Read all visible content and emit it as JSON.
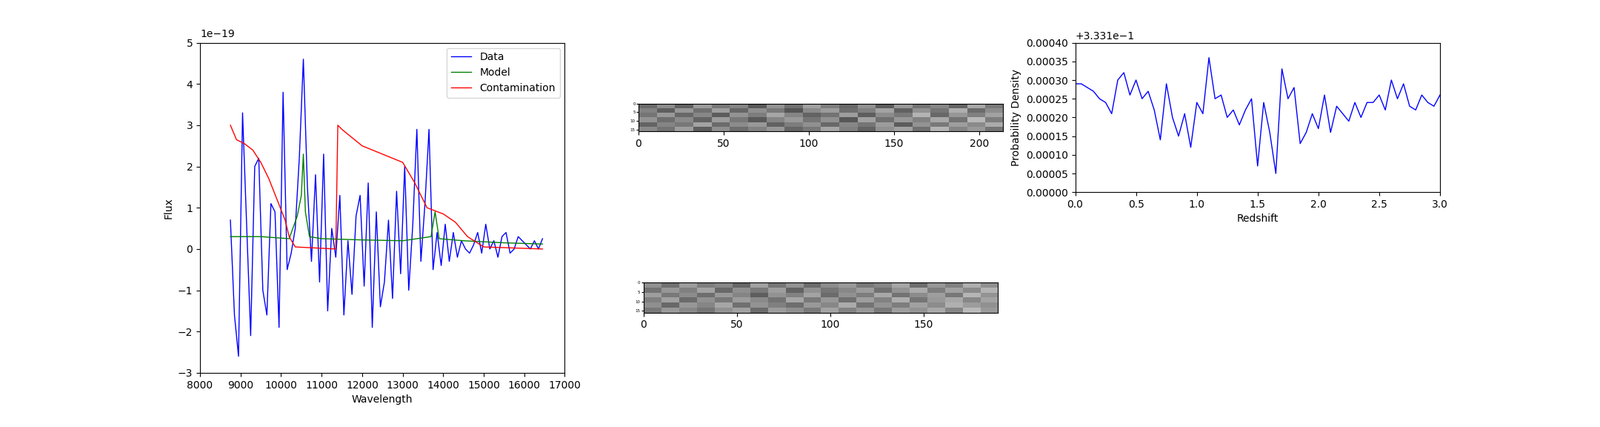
{
  "chart_data": [
    {
      "type": "line",
      "x_label": "Wavelength",
      "y_label": "Flux",
      "annotations": [
        {
          "text": "1e−19"
        }
      ],
      "xlim": [
        8000,
        17000
      ],
      "xticks": [
        8000,
        9000,
        10000,
        11000,
        12000,
        13000,
        14000,
        15000,
        16000,
        17000
      ],
      "ylim": [
        -3,
        5
      ],
      "yticks": [
        {
          "value": -3,
          "label": "−3"
        },
        {
          "value": -2,
          "label": "−2"
        },
        {
          "value": -1,
          "label": "−1"
        },
        0,
        1,
        2,
        3,
        4,
        5
      ],
      "legend": "upper right",
      "series": [
        {
          "name": "Data",
          "color": "#0000ff",
          "x": [
            8750,
            8850,
            8950,
            9050,
            9150,
            9250,
            9350,
            9450,
            9550,
            9650,
            9750,
            9850,
            9950,
            10050,
            10150,
            10250,
            10350,
            10450,
            10550,
            10650,
            10750,
            10850,
            10950,
            11050,
            11150,
            11250,
            11350,
            11450,
            11550,
            11650,
            11750,
            11850,
            11950,
            12050,
            12150,
            12250,
            12350,
            12450,
            12550,
            12650,
            12750,
            12850,
            12950,
            13050,
            13150,
            13250,
            13350,
            13450,
            13550,
            13650,
            13750,
            13850,
            13950,
            14050,
            14150,
            14250,
            14350,
            14450,
            14550,
            14650,
            14750,
            14850,
            14950,
            15050,
            15150,
            15250,
            15350,
            15450,
            15550,
            15650,
            15750,
            15850,
            15950,
            16050,
            16150,
            16250,
            16350,
            16450
          ],
          "values": [
            0.7,
            -1.6,
            -2.6,
            3.3,
            0.6,
            -2.1,
            2.0,
            2.2,
            -1.0,
            -1.6,
            1.1,
            0.9,
            -1.9,
            3.8,
            -0.5,
            -0.1,
            0.5,
            2.2,
            4.6,
            1.5,
            -0.3,
            1.8,
            -0.8,
            2.3,
            -1.5,
            0.5,
            -0.2,
            1.3,
            -1.6,
            0.2,
            -1.1,
            0.8,
            1.3,
            -0.9,
            1.6,
            -1.9,
            0.9,
            -1.4,
            -0.8,
            0.7,
            -1.2,
            1.4,
            -0.6,
            2.0,
            -1.0,
            0.6,
            2.9,
            -0.3,
            1.1,
            2.9,
            -0.5,
            0.4,
            -0.4,
            0.6,
            -0.3,
            0.4,
            -0.2,
            0.2,
            0.0,
            -0.1,
            0.1,
            0.4,
            -0.1,
            0.6,
            0.0,
            0.2,
            -0.2,
            0.3,
            0.4,
            -0.1,
            0.0,
            0.3,
            0.2,
            0.1,
            0.0,
            0.2,
            0.0,
            0.25
          ]
        },
        {
          "name": "Model",
          "color": "#008000",
          "x": [
            8750,
            9500,
            10200,
            10400,
            10500,
            10550,
            10600,
            10700,
            11000,
            12000,
            13000,
            13700,
            13800,
            13900,
            14500,
            15500,
            16450
          ],
          "values": [
            0.3,
            0.3,
            0.25,
            0.8,
            1.3,
            2.3,
            0.9,
            0.3,
            0.25,
            0.22,
            0.2,
            0.3,
            0.9,
            0.25,
            0.2,
            0.15,
            0.12
          ]
        },
        {
          "name": "Contamination",
          "color": "#ff0000",
          "x": [
            8750,
            8900,
            9100,
            9300,
            9500,
            9700,
            9900,
            10100,
            10200,
            10350,
            11350,
            11400,
            11500,
            12000,
            12500,
            13000,
            13300,
            13600,
            14000,
            14300,
            14600,
            15000,
            16450
          ],
          "values": [
            3.0,
            2.65,
            2.55,
            2.4,
            2.1,
            1.7,
            1.2,
            0.7,
            0.3,
            0.05,
            0.0,
            3.0,
            2.9,
            2.5,
            2.3,
            2.1,
            1.6,
            1.0,
            0.85,
            0.65,
            0.3,
            0.05,
            0.0
          ]
        }
      ]
    },
    {
      "type": "heatmap",
      "xlim": [
        0,
        214
      ],
      "xticks": [
        0,
        50,
        100,
        150,
        200
      ],
      "ylim": [
        16,
        0
      ],
      "yticks": [
        0,
        5,
        10,
        15
      ],
      "zlim": [
        0,
        1
      ],
      "cells": [
        [
          0.42,
          0.55,
          0.38,
          0.61,
          0.47,
          0.52,
          0.35,
          0.58,
          0.44,
          0.63,
          0.49,
          0.41,
          0.57,
          0.36,
          0.6,
          0.45,
          0.53,
          0.39,
          0.66,
          0.48
        ],
        [
          0.51,
          0.37,
          0.59,
          0.44,
          0.62,
          0.4,
          0.56,
          0.47,
          0.33,
          0.54,
          0.61,
          0.43,
          0.5,
          0.64,
          0.38,
          0.57,
          0.46,
          0.68,
          0.42,
          0.55
        ],
        [
          0.46,
          0.6,
          0.41,
          0.53,
          0.36,
          0.58,
          0.49,
          0.65,
          0.52,
          0.39,
          0.45,
          0.62,
          0.37,
          0.55,
          0.48,
          0.7,
          0.41,
          0.59,
          0.5,
          0.63
        ],
        [
          0.58,
          0.43,
          0.54,
          0.39,
          0.61,
          0.47,
          0.35,
          0.52,
          0.6,
          0.46,
          0.57,
          0.34,
          0.63,
          0.44,
          0.59,
          0.51,
          0.66,
          0.45,
          0.72,
          0.49
        ],
        [
          0.39,
          0.52,
          0.47,
          0.64,
          0.42,
          0.55,
          0.6,
          0.38,
          0.49,
          0.57,
          0.41,
          0.53,
          0.46,
          0.61,
          0.36,
          0.58,
          0.48,
          0.62,
          0.54,
          0.67
        ],
        [
          0.54,
          0.45,
          0.62,
          0.37,
          0.56,
          0.43,
          0.51,
          0.59,
          0.4,
          0.48,
          0.65,
          0.5,
          0.39,
          0.57,
          0.63,
          0.44,
          0.71,
          0.52,
          0.6,
          0.46
        ]
      ]
    },
    {
      "type": "heatmap",
      "xlim": [
        0,
        190
      ],
      "xticks": [
        0,
        50,
        100,
        150
      ],
      "ylim": [
        16,
        0
      ],
      "yticks": [
        0,
        5,
        10,
        15
      ],
      "zlim": [
        0,
        1
      ],
      "cells": [
        [
          0.57,
          0.44,
          0.61,
          0.49,
          0.53,
          0.4,
          0.63,
          0.46,
          0.58,
          0.42,
          0.55,
          0.6,
          0.47,
          0.52,
          0.65,
          0.43,
          0.59,
          0.5,
          0.68,
          0.56
        ],
        [
          0.45,
          0.59,
          0.5,
          0.64,
          0.41,
          0.56,
          0.48,
          0.62,
          0.39,
          0.57,
          0.46,
          0.53,
          0.61,
          0.44,
          0.58,
          0.67,
          0.49,
          0.63,
          0.54,
          0.7
        ],
        [
          0.62,
          0.48,
          0.55,
          0.43,
          0.6,
          0.52,
          0.37,
          0.58,
          0.51,
          0.64,
          0.42,
          0.57,
          0.49,
          0.66,
          0.45,
          0.55,
          0.62,
          0.47,
          0.71,
          0.58
        ],
        [
          0.5,
          0.63,
          0.42,
          0.57,
          0.47,
          0.61,
          0.54,
          0.45,
          0.65,
          0.48,
          0.59,
          0.44,
          0.62,
          0.51,
          0.68,
          0.46,
          0.6,
          0.66,
          0.53,
          0.64
        ],
        [
          0.56,
          0.41,
          0.59,
          0.52,
          0.65,
          0.44,
          0.58,
          0.5,
          0.43,
          0.6,
          0.53,
          0.67,
          0.45,
          0.58,
          0.49,
          0.63,
          0.55,
          0.69,
          0.61,
          0.57
        ],
        [
          0.47,
          0.6,
          0.53,
          0.46,
          0.57,
          0.63,
          0.42,
          0.61,
          0.56,
          0.48,
          0.64,
          0.51,
          0.59,
          0.47,
          0.62,
          0.58,
          0.66,
          0.52,
          0.73,
          0.6
        ]
      ]
    },
    {
      "type": "line",
      "x_label": "Redshift",
      "y_label": "Probability Density",
      "annotations": [
        {
          "text": "+3.331e−1"
        }
      ],
      "xlim": [
        0.0,
        3.0
      ],
      "xticks": [
        {
          "value": 0.0,
          "label": "0.0"
        },
        {
          "value": 0.5,
          "label": "0.5"
        },
        {
          "value": 1.0,
          "label": "1.0"
        },
        {
          "value": 1.5,
          "label": "1.5"
        },
        {
          "value": 2.0,
          "label": "2.0"
        },
        {
          "value": 2.5,
          "label": "2.5"
        },
        {
          "value": 3.0,
          "label": "3.0"
        }
      ],
      "ylim": [
        0.0,
        0.0004
      ],
      "yticks": [
        {
          "value": 0.0,
          "label": "0.00000"
        },
        {
          "value": 5e-05,
          "label": "0.00005"
        },
        {
          "value": 0.0001,
          "label": "0.00010"
        },
        {
          "value": 0.00015,
          "label": "0.00015"
        },
        {
          "value": 0.0002,
          "label": "0.00020"
        },
        {
          "value": 0.00025,
          "label": "0.00025"
        },
        {
          "value": 0.0003,
          "label": "0.00030"
        },
        {
          "value": 0.00035,
          "label": "0.00035"
        },
        {
          "value": 0.0004,
          "label": "0.00040"
        }
      ],
      "series": [
        {
          "color": "#0000ff",
          "x": [
            0.0,
            0.05,
            0.1,
            0.15,
            0.2,
            0.25,
            0.3,
            0.35,
            0.4,
            0.45,
            0.5,
            0.55,
            0.6,
            0.65,
            0.7,
            0.75,
            0.8,
            0.85,
            0.9,
            0.95,
            1.0,
            1.05,
            1.1,
            1.15,
            1.2,
            1.25,
            1.3,
            1.35,
            1.4,
            1.45,
            1.5,
            1.55,
            1.6,
            1.65,
            1.7,
            1.75,
            1.8,
            1.85,
            1.9,
            1.95,
            2.0,
            2.05,
            2.1,
            2.15,
            2.2,
            2.25,
            2.3,
            2.35,
            2.4,
            2.45,
            2.5,
            2.55,
            2.6,
            2.65,
            2.7,
            2.75,
            2.8,
            2.85,
            2.9,
            2.95,
            3.0
          ],
          "values": [
            0.00029,
            0.00029,
            0.00028,
            0.00027,
            0.00025,
            0.00024,
            0.00021,
            0.0003,
            0.00032,
            0.00026,
            0.0003,
            0.00025,
            0.00027,
            0.00022,
            0.00014,
            0.00029,
            0.0002,
            0.00015,
            0.00021,
            0.00012,
            0.00024,
            0.00021,
            0.00036,
            0.00025,
            0.00026,
            0.0002,
            0.00022,
            0.00018,
            0.00022,
            0.00025,
            7e-05,
            0.00024,
            0.00016,
            5e-05,
            0.00033,
            0.00025,
            0.00028,
            0.00013,
            0.00016,
            0.00021,
            0.00017,
            0.00026,
            0.00016,
            0.00023,
            0.00021,
            0.00019,
            0.00024,
            0.0002,
            0.00024,
            0.00024,
            0.00026,
            0.00022,
            0.0003,
            0.00025,
            0.00029,
            0.00023,
            0.00022,
            0.00026,
            0.00024,
            0.00023,
            0.00026
          ]
        }
      ]
    }
  ]
}
